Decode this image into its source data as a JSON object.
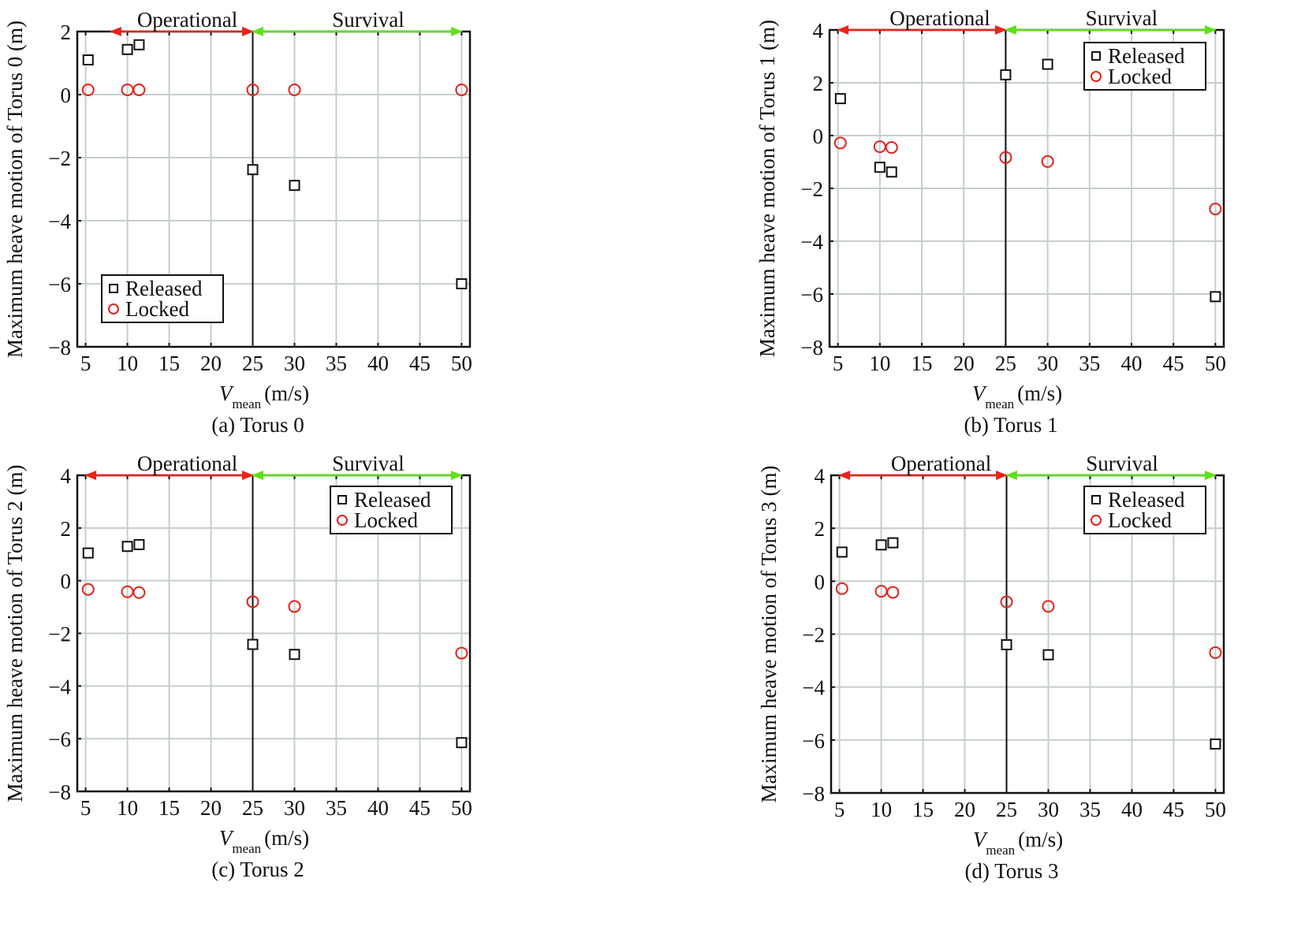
{
  "chart_data": [
    {
      "id": "a",
      "type": "scatter",
      "caption": "(a) Torus 0",
      "ylabel": "Maximum heave motion of Torus 0 (m)",
      "xlabel_main": "V",
      "xlabel_sub": "mean",
      "xlabel_unit": "(m/s)",
      "xlim": [
        4,
        51
      ],
      "ylim": [
        -8,
        2
      ],
      "xticks": [
        5,
        10,
        15,
        20,
        25,
        30,
        35,
        40,
        45,
        50
      ],
      "yticks": [
        -8,
        -6,
        -4,
        -2,
        0,
        2
      ],
      "grid": true,
      "legend_position": "bottom-left",
      "regions": [
        {
          "label": "Operational",
          "from": 8,
          "to": 25,
          "color": "#e8241c"
        },
        {
          "label": "Survival",
          "from": 25,
          "to": 50,
          "color": "#5ee01b"
        }
      ],
      "divider_x": 25,
      "series": [
        {
          "name": "Released",
          "marker": "square",
          "color": "#111111",
          "x": [
            5.3,
            10,
            11.4,
            25,
            30,
            50
          ],
          "y": [
            1.1,
            1.43,
            1.58,
            -2.38,
            -2.88,
            -6.0
          ]
        },
        {
          "name": "Locked",
          "marker": "circle",
          "color": "#e0221b",
          "x": [
            5.3,
            10,
            11.4,
            25,
            30,
            50
          ],
          "y": [
            0.15,
            0.15,
            0.15,
            0.15,
            0.15,
            0.15
          ]
        }
      ]
    },
    {
      "id": "b",
      "type": "scatter",
      "caption": "(b) Torus 1",
      "ylabel": "Maximum heave motion of Torus 1 (m)",
      "xlabel_main": "V",
      "xlabel_sub": "mean",
      "xlabel_unit": "(m/s)",
      "xlim": [
        4,
        51
      ],
      "ylim": [
        -8,
        4
      ],
      "xticks": [
        5,
        10,
        15,
        20,
        25,
        30,
        35,
        40,
        45,
        50
      ],
      "yticks": [
        -8,
        -6,
        -4,
        -2,
        0,
        2,
        4
      ],
      "grid": true,
      "legend_position": "top-right",
      "regions": [
        {
          "label": "Operational",
          "from": 5,
          "to": 25,
          "color": "#e8241c"
        },
        {
          "label": "Survival",
          "from": 25,
          "to": 50,
          "color": "#5ee01b"
        }
      ],
      "divider_x": 25,
      "series": [
        {
          "name": "Released",
          "marker": "square",
          "color": "#111111",
          "x": [
            5.3,
            10,
            11.4,
            25,
            30,
            50
          ],
          "y": [
            1.4,
            -1.2,
            -1.38,
            2.3,
            2.7,
            -6.1
          ]
        },
        {
          "name": "Locked",
          "marker": "circle",
          "color": "#e0221b",
          "x": [
            5.3,
            10,
            11.4,
            25,
            30,
            50
          ],
          "y": [
            -0.28,
            -0.42,
            -0.45,
            -0.83,
            -0.98,
            -2.78
          ]
        }
      ]
    },
    {
      "id": "c",
      "type": "scatter",
      "caption": "(c) Torus 2",
      "ylabel": "Maximum heave motion of Torus 2 (m)",
      "xlabel_main": "V",
      "xlabel_sub": "mean",
      "xlabel_unit": "(m/s)",
      "xlim": [
        4,
        51
      ],
      "ylim": [
        -8,
        4
      ],
      "xticks": [
        5,
        10,
        15,
        20,
        25,
        30,
        35,
        40,
        45,
        50
      ],
      "yticks": [
        -8,
        -6,
        -4,
        -2,
        0,
        2,
        4
      ],
      "grid": true,
      "legend_position": "top-right",
      "regions": [
        {
          "label": "Operational",
          "from": 5,
          "to": 25,
          "color": "#e8241c"
        },
        {
          "label": "Survival",
          "from": 25,
          "to": 50,
          "color": "#5ee01b"
        }
      ],
      "divider_x": 25,
      "series": [
        {
          "name": "Released",
          "marker": "square",
          "color": "#111111",
          "x": [
            5.3,
            10,
            11.4,
            25,
            30,
            50
          ],
          "y": [
            1.05,
            1.3,
            1.37,
            -2.42,
            -2.8,
            -6.15
          ]
        },
        {
          "name": "Locked",
          "marker": "circle",
          "color": "#e0221b",
          "x": [
            5.3,
            10,
            11.4,
            25,
            30,
            50
          ],
          "y": [
            -0.33,
            -0.42,
            -0.45,
            -0.8,
            -0.98,
            -2.75
          ]
        }
      ]
    },
    {
      "id": "d",
      "type": "scatter",
      "caption": "(d) Torus 3",
      "ylabel": "Maximum heave motion of Torus 3 (m)",
      "xlabel_main": "V",
      "xlabel_sub": "mean",
      "xlabel_unit": "(m/s)",
      "xlim": [
        4,
        51
      ],
      "ylim": [
        -8,
        4
      ],
      "xticks": [
        5,
        10,
        15,
        20,
        25,
        30,
        35,
        40,
        45,
        50
      ],
      "yticks": [
        -8,
        -6,
        -4,
        -2,
        0,
        2,
        4
      ],
      "grid": true,
      "legend_position": "top-right",
      "regions": [
        {
          "label": "Operational",
          "from": 5,
          "to": 25,
          "color": "#e8241c"
        },
        {
          "label": "Survival",
          "from": 25,
          "to": 50,
          "color": "#5ee01b"
        }
      ],
      "divider_x": 25,
      "series": [
        {
          "name": "Released",
          "marker": "square",
          "color": "#111111",
          "x": [
            5.3,
            10,
            11.4,
            25,
            30,
            50
          ],
          "y": [
            1.1,
            1.37,
            1.45,
            -2.4,
            -2.78,
            -6.15
          ]
        },
        {
          "name": "Locked",
          "marker": "circle",
          "color": "#e0221b",
          "x": [
            5.3,
            10,
            11.4,
            25,
            30,
            50
          ],
          "y": [
            -0.28,
            -0.38,
            -0.42,
            -0.78,
            -0.95,
            -2.7
          ]
        }
      ]
    }
  ]
}
